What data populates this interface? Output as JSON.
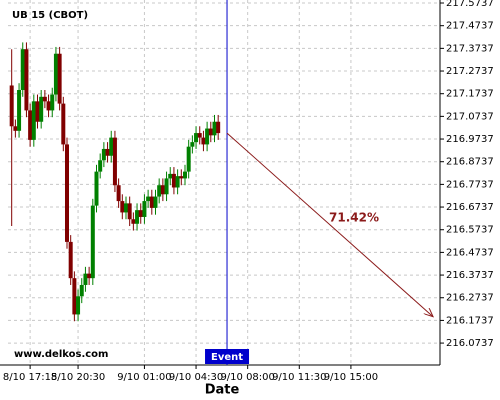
{
  "chart_data": {
    "type": "candlestick",
    "title": "UB 15 (CBOT)",
    "xlabel": "Date",
    "watermark": "www.delkos.com",
    "x": [
      16,
      16.25,
      16.5,
      16.75,
      17,
      17.25,
      17.5,
      17.75,
      18,
      18.25,
      18.5,
      18.75,
      19,
      19.25,
      19.5,
      19.75,
      20,
      20.25,
      20.5,
      20.75,
      21,
      21.25,
      21.5,
      21.75,
      22,
      22.25,
      22.5,
      22.75,
      23,
      23.25,
      23.5,
      23.75,
      24,
      24.25,
      24.5,
      24.75,
      25,
      25.25,
      25.5,
      25.75,
      26,
      26.25,
      26.5,
      26.75,
      27,
      27.25,
      27.5,
      27.75,
      28,
      28.25,
      28.5,
      28.75,
      29,
      29.25,
      29.5,
      29.75,
      30
    ],
    "open": [
      217.21,
      217.03,
      217.01,
      217.19,
      217.37,
      217.1,
      216.97,
      217.14,
      217.05,
      217.16,
      217.14,
      217.1,
      217.17,
      217.35,
      217.13,
      216.95,
      216.52,
      216.36,
      216.2,
      216.28,
      216.33,
      216.38,
      216.36,
      216.68,
      216.83,
      216.88,
      216.93,
      216.9,
      216.98,
      216.77,
      216.7,
      216.65,
      216.69,
      216.62,
      216.6,
      216.66,
      216.63,
      216.7,
      216.72,
      216.67,
      216.72,
      216.77,
      216.73,
      216.8,
      216.82,
      216.76,
      216.81,
      216.8,
      216.83,
      216.94,
      216.96,
      217.0,
      216.98,
      216.95,
      217.02,
      216.99,
      217.05
    ],
    "high": [
      217.37,
      217.06,
      217.22,
      217.4,
      217.4,
      217.13,
      217.17,
      217.17,
      217.19,
      217.19,
      217.17,
      217.2,
      217.38,
      217.38,
      217.16,
      216.98,
      216.55,
      216.39,
      216.31,
      216.36,
      216.41,
      216.41,
      216.71,
      216.86,
      216.91,
      216.96,
      216.96,
      217.01,
      217.01,
      216.8,
      216.73,
      216.72,
      216.72,
      216.65,
      216.69,
      216.69,
      216.73,
      216.75,
      216.75,
      216.75,
      216.8,
      216.8,
      216.83,
      216.85,
      216.85,
      216.84,
      216.84,
      216.86,
      216.97,
      216.99,
      217.03,
      217.03,
      217.01,
      217.05,
      217.05,
      217.08,
      217.08
    ],
    "low": [
      216.59,
      216.98,
      216.98,
      217.16,
      217.07,
      216.94,
      216.94,
      217.02,
      217.02,
      217.11,
      217.07,
      217.07,
      217.14,
      217.1,
      216.92,
      216.49,
      216.33,
      216.17,
      216.17,
      216.25,
      216.3,
      216.33,
      216.33,
      216.65,
      216.8,
      216.85,
      216.87,
      216.87,
      216.74,
      216.67,
      216.62,
      216.62,
      216.59,
      216.57,
      216.57,
      216.6,
      216.6,
      216.67,
      216.64,
      216.64,
      216.69,
      216.7,
      216.7,
      216.77,
      216.73,
      216.73,
      216.77,
      216.77,
      216.8,
      216.91,
      216.93,
      216.95,
      216.92,
      216.92,
      216.96,
      216.96,
      216.97
    ],
    "close": [
      217.03,
      217.01,
      217.19,
      217.37,
      217.1,
      216.97,
      217.14,
      217.05,
      217.16,
      217.14,
      217.1,
      217.17,
      217.35,
      217.13,
      216.95,
      216.52,
      216.36,
      216.2,
      216.28,
      216.33,
      216.38,
      216.36,
      216.68,
      216.83,
      216.88,
      216.93,
      216.9,
      216.98,
      216.77,
      216.7,
      216.65,
      216.69,
      216.62,
      216.6,
      216.66,
      216.63,
      216.7,
      216.72,
      216.67,
      216.72,
      216.77,
      216.73,
      216.8,
      216.82,
      216.76,
      216.81,
      216.8,
      216.83,
      216.94,
      216.96,
      217.0,
      216.98,
      216.95,
      217.02,
      216.99,
      217.05,
      217.0
    ],
    "up_color": "#008000",
    "down_color": "#800000",
    "xlim": [
      15.75,
      45.04
    ],
    "ylim": [
      215.977,
      217.587
    ],
    "xticks": [
      {
        "value": 17.25,
        "label": "8/10 17:15"
      },
      {
        "value": 20.5,
        "label": "8/10 20:30"
      },
      {
        "value": 25,
        "label": "9/10 01:00"
      },
      {
        "value": 28.5,
        "label": "9/10 04:30"
      },
      {
        "value": 32,
        "label": "9/10 08:00"
      },
      {
        "value": 35.5,
        "label": "9/10 11:30"
      },
      {
        "value": 39,
        "label": "9/10 15:00"
      }
    ],
    "yticks": [
      217.5737,
      217.4737,
      217.3737,
      217.2737,
      217.1737,
      217.0737,
      216.9737,
      216.8737,
      216.7737,
      216.6737,
      216.5737,
      216.4737,
      216.3737,
      216.2737,
      216.1737,
      216.0737
    ],
    "grid": true,
    "event": {
      "x": 30.6,
      "label": "Event",
      "color": "#0000cc"
    },
    "prediction": {
      "x": [
        30.6,
        44.57
      ],
      "y": [
        217.0,
        216.19
      ],
      "label": "71.42%",
      "color": "#8b1a1a"
    }
  }
}
